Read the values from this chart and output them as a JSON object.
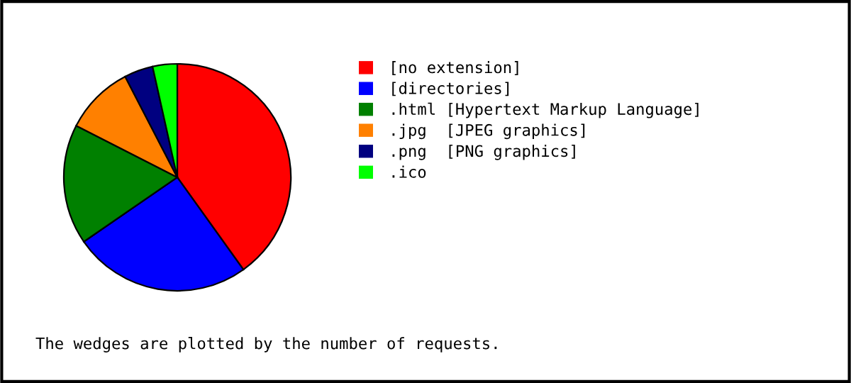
{
  "chart_data": {
    "type": "pie",
    "categories": [
      "[no extension]",
      "[directories]",
      ".html [Hypertext Markup Language]",
      ".jpg  [JPEG graphics]",
      ".png  [PNG graphics]",
      ".ico"
    ],
    "values": [
      40.1,
      25.3,
      17.1,
      9.9,
      4.1,
      3.5
    ],
    "colors": [
      "#ff0000",
      "#0000ff",
      "#008000",
      "#ff8000",
      "#000080",
      "#00ff00"
    ],
    "legend": "right",
    "annotations": [
      "The wedges are plotted by the number of requests."
    ]
  }
}
